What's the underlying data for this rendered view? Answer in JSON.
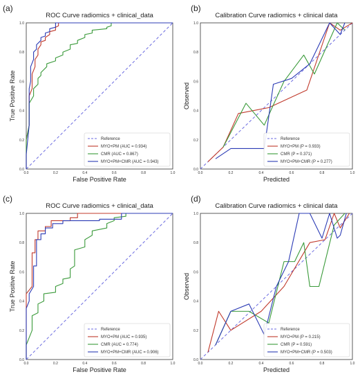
{
  "colors": {
    "reference": "#6a6ae0",
    "series1": "#c0392b",
    "series2": "#3a9a3a",
    "series3": "#2b3bb5",
    "axis": "#333333"
  },
  "chart_data": [
    {
      "panel": "(a)",
      "type": "line",
      "title": "ROC Curve radiomics + clinical_data",
      "xlabel": "False Positive Rate",
      "ylabel": "True Positive Rate",
      "xlim": [
        0,
        1
      ],
      "ylim": [
        0,
        1
      ],
      "xticks": [
        "0.0",
        "0.2",
        "0.4",
        "0.6",
        "0.8",
        "1.0"
      ],
      "yticks": [
        "0.0",
        "0.2",
        "0.4",
        "0.6",
        "0.8",
        "1.0"
      ],
      "legend_position": "bottom-right",
      "grid": false,
      "reference": {
        "name": "Reference",
        "x": [
          0,
          1
        ],
        "y": [
          0,
          1
        ]
      },
      "series": [
        {
          "name": "MYO+PM (AUC = 0.934)",
          "x": [
            0,
            0,
            0.02,
            0.02,
            0.04,
            0.04,
            0.06,
            0.06,
            0.08,
            0.08,
            0.1,
            0.1,
            0.13,
            0.13,
            0.16,
            0.16,
            0.2,
            0.2,
            0.22,
            0.22,
            0.5,
            0.5,
            1.0
          ],
          "y": [
            0,
            0.2,
            0.3,
            0.5,
            0.55,
            0.65,
            0.7,
            0.75,
            0.78,
            0.82,
            0.85,
            0.87,
            0.88,
            0.9,
            0.92,
            0.94,
            0.95,
            0.97,
            0.98,
            1.0,
            1.0,
            1.0,
            1.0
          ]
        },
        {
          "name": "CMR (AUC = 0.867)",
          "x": [
            0,
            0,
            0.02,
            0.02,
            0.05,
            0.05,
            0.08,
            0.08,
            0.1,
            0.1,
            0.14,
            0.14,
            0.2,
            0.2,
            0.25,
            0.25,
            0.3,
            0.3,
            0.35,
            0.35,
            0.4,
            0.4,
            0.45,
            0.45,
            0.55,
            0.55,
            0.58,
            0.58,
            1.0
          ],
          "y": [
            0,
            0.2,
            0.3,
            0.45,
            0.5,
            0.55,
            0.58,
            0.62,
            0.64,
            0.66,
            0.7,
            0.72,
            0.74,
            0.76,
            0.78,
            0.8,
            0.82,
            0.85,
            0.86,
            0.88,
            0.9,
            0.92,
            0.93,
            0.95,
            0.96,
            0.97,
            0.98,
            1.0,
            1.0
          ]
        },
        {
          "name": "MYO+PM+CMR (AUC = 0.943)",
          "x": [
            0,
            0,
            0.02,
            0.02,
            0.03,
            0.03,
            0.05,
            0.05,
            0.07,
            0.07,
            0.1,
            0.1,
            0.13,
            0.13,
            0.16,
            0.16,
            0.2,
            0.2,
            1.0
          ],
          "y": [
            0,
            0.1,
            0.3,
            0.55,
            0.6,
            0.7,
            0.75,
            0.8,
            0.82,
            0.85,
            0.88,
            0.9,
            0.91,
            0.93,
            0.94,
            0.96,
            0.97,
            1.0,
            1.0
          ]
        }
      ]
    },
    {
      "panel": "(b)",
      "type": "line",
      "title": "Calibration Curve radiomics + clinical data",
      "xlabel": "Predicted",
      "ylabel": "Observed",
      "xlim": [
        0,
        1
      ],
      "ylim": [
        0,
        1
      ],
      "xticks": [
        "0.0",
        "0.2",
        "0.4",
        "0.6",
        "0.8",
        "1.0"
      ],
      "yticks": [
        "0.0",
        "0.2",
        "0.4",
        "0.6",
        "0.8",
        "1.0"
      ],
      "legend_position": "bottom-right",
      "grid": false,
      "reference": {
        "name": "Reference",
        "x": [
          0,
          1
        ],
        "y": [
          0,
          1
        ]
      },
      "series": [
        {
          "name": "MYO+PM (P = 0.933)",
          "x": [
            0.05,
            0.15,
            0.25,
            0.45,
            0.7,
            0.85,
            0.92,
            1.0
          ],
          "y": [
            0.05,
            0.15,
            0.38,
            0.42,
            0.54,
            1.0,
            0.95,
            1.0
          ]
        },
        {
          "name": "CMR (P = 0.371)",
          "x": [
            0.15,
            0.3,
            0.42,
            0.55,
            0.68,
            0.75,
            0.9,
            0.95
          ],
          "y": [
            0.15,
            0.45,
            0.3,
            0.6,
            0.78,
            0.65,
            1.0,
            0.95
          ]
        },
        {
          "name": "MYO+PM+CMR (P = 0.277)",
          "x": [
            0.1,
            0.2,
            0.3,
            0.42,
            0.48,
            0.6,
            0.72,
            0.85,
            0.92,
            0.95
          ],
          "y": [
            0.07,
            0.14,
            0.14,
            0.14,
            0.58,
            0.62,
            0.72,
            1.0,
            0.92,
            1.0
          ]
        }
      ]
    },
    {
      "panel": "(c)",
      "type": "line",
      "title": "ROC Curve radiomics + clinical_data",
      "xlabel": "False Positive Rate",
      "ylabel": "True Positive Rate",
      "xlim": [
        0,
        1
      ],
      "ylim": [
        0,
        1
      ],
      "xticks": [
        "0.0",
        "0.2",
        "0.4",
        "0.6",
        "0.8",
        "1.0"
      ],
      "yticks": [
        "0.0",
        "0.2",
        "0.4",
        "0.6",
        "0.8",
        "1.0"
      ],
      "legend_position": "bottom-right",
      "grid": false,
      "reference": {
        "name": "Reference",
        "x": [
          0,
          1
        ],
        "y": [
          0,
          1
        ]
      },
      "series": [
        {
          "name": "MYO+PM (AUC = 0.935)",
          "x": [
            0,
            0,
            0.04,
            0.04,
            0.06,
            0.06,
            0.08,
            0.08,
            0.13,
            0.13,
            0.17,
            0.17,
            0.3,
            0.3,
            0.35,
            0.35,
            1.0
          ],
          "y": [
            0,
            0.45,
            0.5,
            0.73,
            0.73,
            0.82,
            0.82,
            0.88,
            0.88,
            0.91,
            0.91,
            0.95,
            0.95,
            0.97,
            0.97,
            1.0,
            1.0
          ]
        },
        {
          "name": "CMR (AUC = 0.774)",
          "x": [
            0,
            0,
            0.04,
            0.04,
            0.08,
            0.08,
            0.12,
            0.12,
            0.2,
            0.2,
            0.25,
            0.25,
            0.3,
            0.3,
            0.33,
            0.33,
            0.4,
            0.4,
            0.45,
            0.45,
            0.55,
            0.55,
            0.6,
            0.6,
            0.68,
            0.68,
            1.0
          ],
          "y": [
            0,
            0.1,
            0.2,
            0.3,
            0.32,
            0.38,
            0.4,
            0.45,
            0.46,
            0.5,
            0.52,
            0.55,
            0.56,
            0.62,
            0.64,
            0.75,
            0.77,
            0.82,
            0.85,
            0.88,
            0.9,
            0.93,
            0.95,
            0.97,
            0.98,
            1.0,
            1.0
          ]
        },
        {
          "name": "MYO+PM+CMR (AUC = 0.906)",
          "x": [
            0,
            0,
            0.02,
            0.02,
            0.05,
            0.05,
            0.07,
            0.07,
            0.1,
            0.1,
            0.13,
            0.13,
            0.18,
            0.18,
            0.25,
            0.25,
            0.5,
            0.5,
            0.65,
            0.65,
            1.0
          ],
          "y": [
            0,
            0.35,
            0.4,
            0.45,
            0.5,
            0.64,
            0.64,
            0.82,
            0.82,
            0.86,
            0.86,
            0.9,
            0.9,
            0.93,
            0.93,
            0.95,
            0.95,
            0.96,
            0.96,
            1.0,
            1.0
          ]
        }
      ]
    },
    {
      "panel": "(d)",
      "type": "line",
      "title": "Calibration Curve radiomics + clinical data",
      "xlabel": "Predicted",
      "ylabel": "Observed",
      "xlim": [
        0,
        1
      ],
      "ylim": [
        0,
        1
      ],
      "xticks": [
        "0.0",
        "0.2",
        "0.4",
        "0.6",
        "0.8",
        "1.0"
      ],
      "yticks": [
        "0.0",
        "0.2",
        "0.4",
        "0.6",
        "0.8",
        "1.0"
      ],
      "legend_position": "bottom-right",
      "grid": false,
      "reference": {
        "name": "Reference",
        "x": [
          0,
          1
        ],
        "y": [
          0,
          1
        ]
      },
      "series": [
        {
          "name": "MYO+PM (P = 0.215)",
          "x": [
            0.05,
            0.12,
            0.2,
            0.4,
            0.55,
            0.72,
            0.82,
            0.88,
            0.92,
            0.98
          ],
          "y": [
            0.05,
            0.33,
            0.2,
            0.33,
            0.5,
            0.8,
            0.82,
            1.0,
            0.9,
            1.0
          ]
        },
        {
          "name": "CMR (P = 0.591)",
          "x": [
            0.1,
            0.2,
            0.32,
            0.45,
            0.55,
            0.62,
            0.68,
            0.72,
            0.78,
            0.88,
            0.95
          ],
          "y": [
            0.1,
            0.33,
            0.33,
            0.25,
            0.67,
            0.67,
            0.8,
            0.5,
            0.5,
            0.92,
            1.0
          ]
        },
        {
          "name": "MYO+PM+CMR (P = 0.503)",
          "x": [
            0.1,
            0.2,
            0.32,
            0.42,
            0.5,
            0.58,
            0.65,
            0.72,
            0.8,
            0.85,
            0.9,
            0.92,
            0.96
          ],
          "y": [
            0.1,
            0.33,
            0.38,
            0.17,
            0.5,
            0.67,
            1.0,
            1.0,
            0.83,
            1.0,
            0.83,
            0.85,
            1.0
          ]
        }
      ]
    }
  ]
}
